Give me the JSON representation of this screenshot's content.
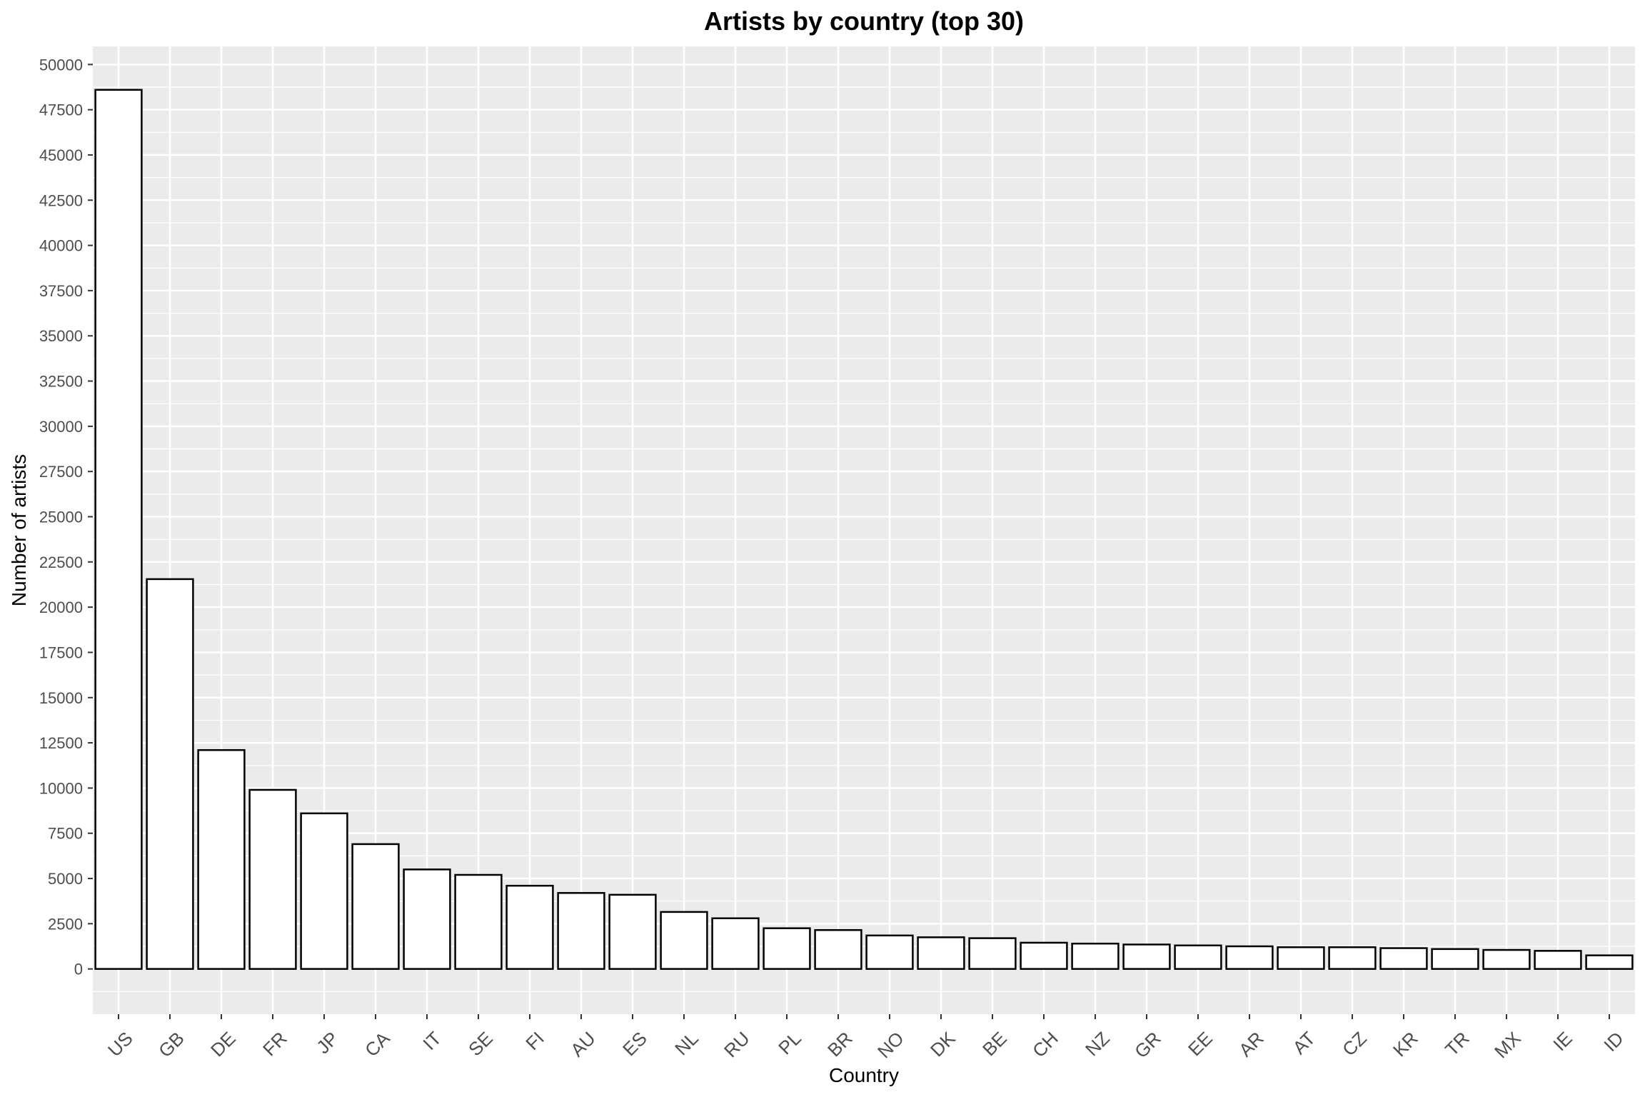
{
  "chart_data": {
    "type": "bar",
    "title": "Artists by country (top 30)",
    "xlabel": "Country",
    "ylabel": "Number of artists",
    "categories": [
      "US",
      "GB",
      "DE",
      "FR",
      "JP",
      "CA",
      "IT",
      "SE",
      "FI",
      "AU",
      "ES",
      "NL",
      "RU",
      "PL",
      "BR",
      "NO",
      "DK",
      "BE",
      "CH",
      "NZ",
      "GR",
      "EE",
      "AR",
      "AT",
      "CZ",
      "KR",
      "TR",
      "MX",
      "IE",
      "ID"
    ],
    "values": [
      48600,
      21550,
      12100,
      9900,
      8600,
      6900,
      5500,
      5200,
      4600,
      4200,
      4100,
      3150,
      2800,
      2250,
      2150,
      1850,
      1750,
      1700,
      1450,
      1400,
      1350,
      1300,
      1250,
      1200,
      1200,
      1150,
      1100,
      1050,
      1000,
      750
    ],
    "ylim": [
      -2500,
      51000
    ],
    "y_ticks": [
      0,
      2500,
      5000,
      7500,
      10000,
      12500,
      15000,
      17500,
      20000,
      22500,
      25000,
      27500,
      30000,
      32500,
      35000,
      37500,
      40000,
      42500,
      45000,
      47500,
      50000
    ],
    "y_tick_labels": [
      "0",
      "2500",
      "5000",
      "7500",
      "10000",
      "12500",
      "15000",
      "17500",
      "20000",
      "22500",
      "25000",
      "27500",
      "30000",
      "32500",
      "35000",
      "37500",
      "40000",
      "42500",
      "45000",
      "47500",
      "50000"
    ],
    "grid": true,
    "legend": "none",
    "colors": {
      "panel_background": "#ebebeb",
      "grid_line": "#ffffff",
      "bar_fill": "#ffffff",
      "bar_outline": "#000000",
      "tick_mark": "#333333"
    }
  }
}
